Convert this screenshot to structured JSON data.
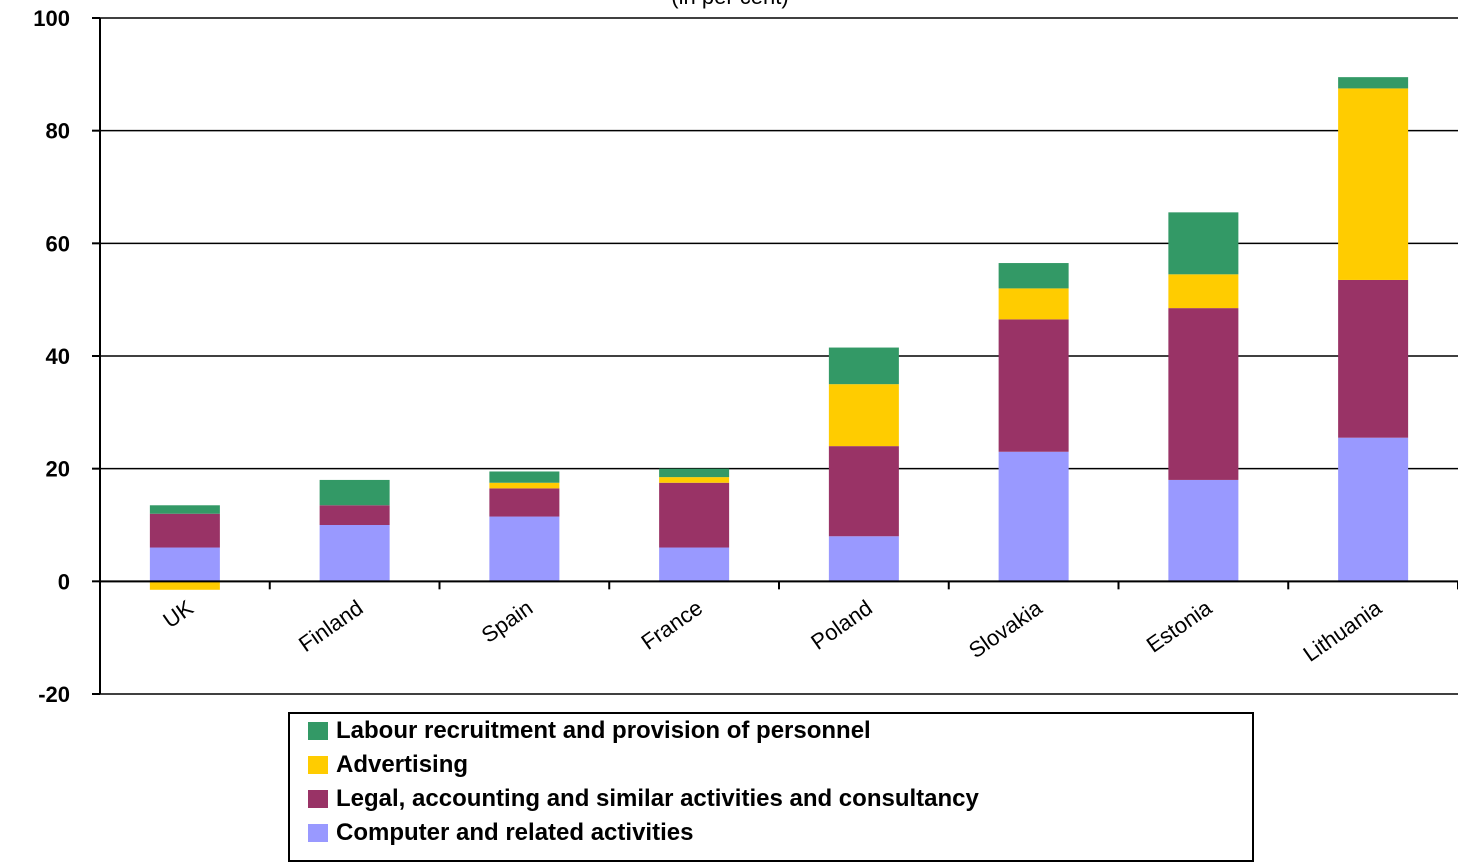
{
  "chart_data": {
    "type": "bar",
    "stacked": true,
    "subtitle": "(in per cent)",
    "categories": [
      "UK",
      "Finland",
      "Spain",
      "France",
      "Poland",
      "Slovakia",
      "Estonia",
      "Lithuania"
    ],
    "ylim": [
      -20,
      100
    ],
    "yticks": [
      -20,
      0,
      20,
      40,
      60,
      80,
      100
    ],
    "grid": true,
    "legend_position": "bottom",
    "series": [
      {
        "name": "Computer and related activities",
        "color": "#9999ff",
        "values": [
          6,
          10,
          11.5,
          6,
          8,
          23,
          18,
          25.5
        ]
      },
      {
        "name": "Legal, accounting and similar activities and consultancy",
        "color": "#993366",
        "values": [
          6,
          3.5,
          5,
          11.5,
          16,
          23.5,
          30.5,
          28
        ]
      },
      {
        "name": "Advertising",
        "color": "#ffcc00",
        "values": [
          -1.5,
          0,
          1,
          1,
          11,
          5.5,
          6,
          34
        ]
      },
      {
        "name": "Labour recruitment and provision of personnel",
        "color": "#339966",
        "values": [
          1.5,
          4.5,
          2,
          1.5,
          6.5,
          4.5,
          11,
          2
        ]
      }
    ],
    "legend_order": [
      3,
      2,
      1,
      0
    ]
  }
}
